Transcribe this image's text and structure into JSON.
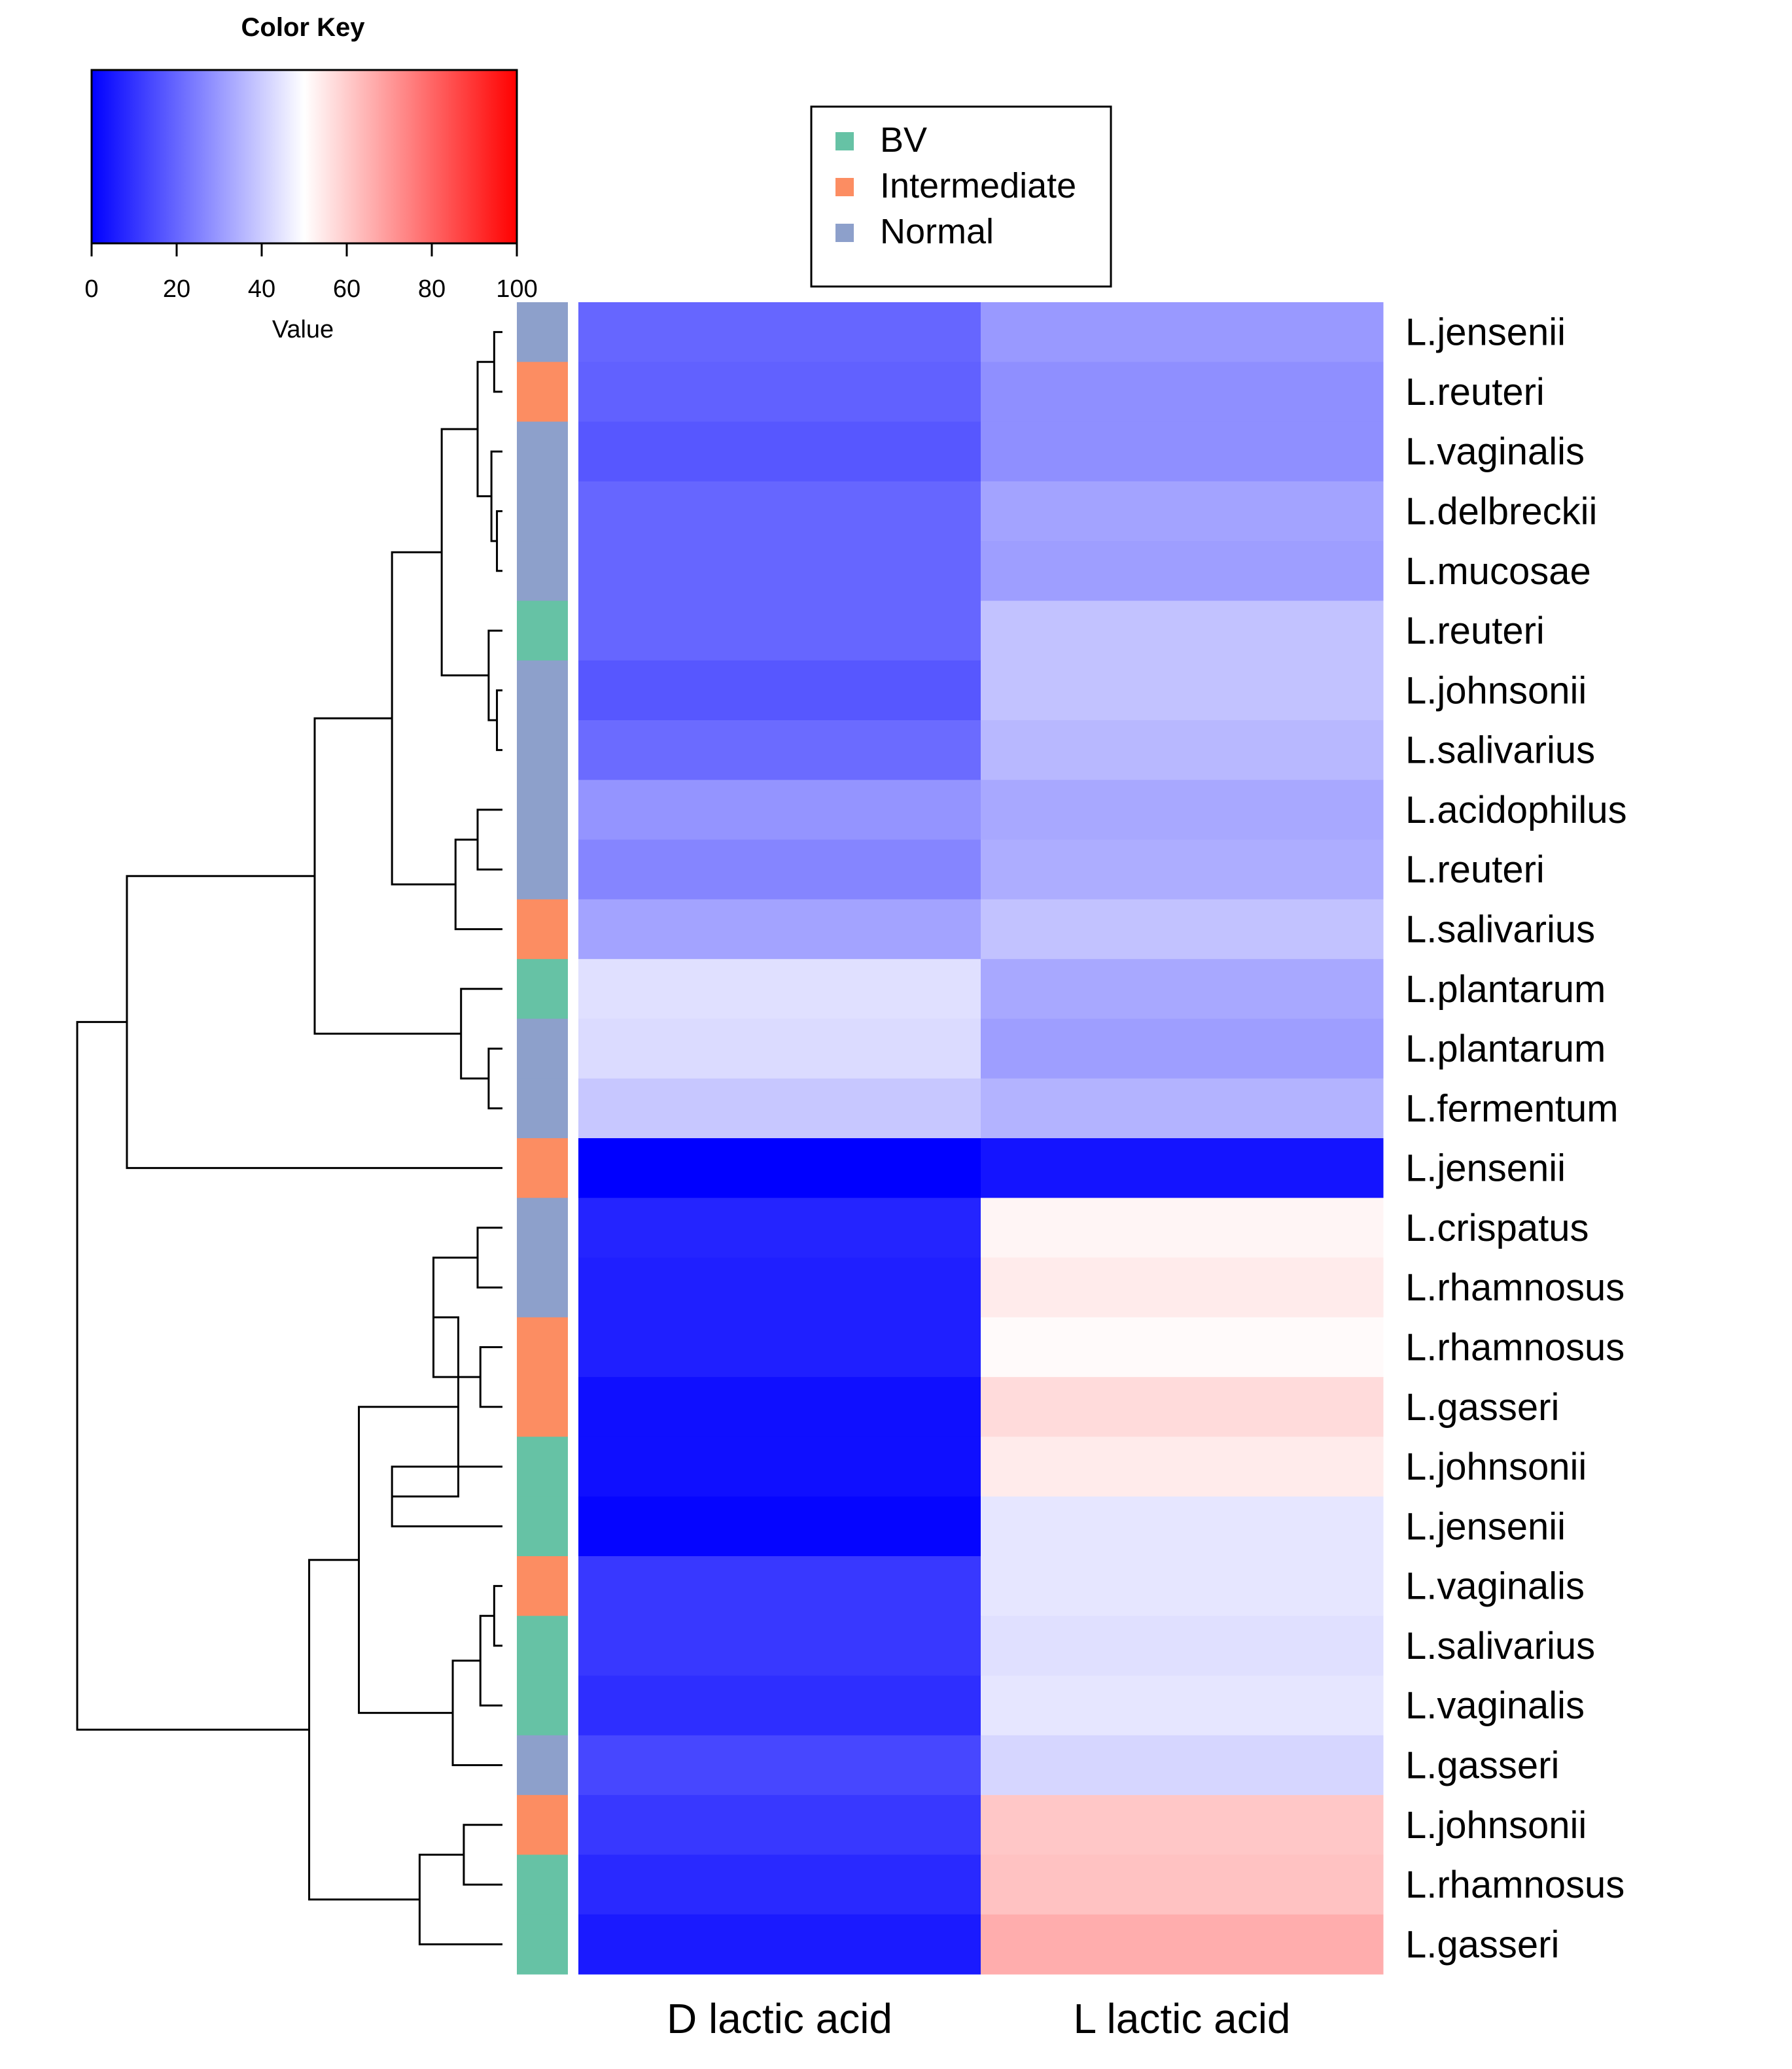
{
  "colors": {
    "BV": "#66c2a5",
    "Intermediate": "#fc8d62",
    "Normal": "#8da0cb",
    "scale_low": "#0000ff",
    "scale_mid": "#ffffff",
    "scale_high": "#ff0000"
  },
  "chart_data": {
    "type": "heatmap",
    "columns": [
      "D lactic acid",
      "L lactic acid"
    ],
    "rows": [
      {
        "label": "L.jensenii",
        "group": "Normal",
        "values": [
          20,
          30
        ]
      },
      {
        "label": "L.reuteri",
        "group": "Intermediate",
        "values": [
          19,
          28
        ]
      },
      {
        "label": "L.vaginalis",
        "group": "Normal",
        "values": [
          17,
          28
        ]
      },
      {
        "label": "L.delbreckii",
        "group": "Normal",
        "values": [
          20,
          32
        ]
      },
      {
        "label": "L.mucosae",
        "group": "Normal",
        "values": [
          20,
          31
        ]
      },
      {
        "label": "L.reuteri",
        "group": "BV",
        "values": [
          20,
          38
        ]
      },
      {
        "label": "L.johnsonii",
        "group": "Normal",
        "values": [
          17,
          38
        ]
      },
      {
        "label": "L.salivarius",
        "group": "Normal",
        "values": [
          21,
          36
        ]
      },
      {
        "label": "L.acidophilus",
        "group": "Normal",
        "values": [
          29,
          33
        ]
      },
      {
        "label": "L.reuteri",
        "group": "Normal",
        "values": [
          26,
          34
        ]
      },
      {
        "label": "L.salivarius",
        "group": "Intermediate",
        "values": [
          32,
          38
        ]
      },
      {
        "label": "L.plantarum",
        "group": "BV",
        "values": [
          44,
          33
        ]
      },
      {
        "label": "L.plantarum",
        "group": "Normal",
        "values": [
          43,
          31
        ]
      },
      {
        "label": "L.fermentum",
        "group": "Normal",
        "values": [
          39,
          35
        ]
      },
      {
        "label": "L.jensenii",
        "group": "Intermediate",
        "values": [
          0,
          4
        ]
      },
      {
        "label": "L.crispatus",
        "group": "Normal",
        "values": [
          7,
          52
        ]
      },
      {
        "label": "L.rhamnosus",
        "group": "Normal",
        "values": [
          6,
          54
        ]
      },
      {
        "label": "L.rhamnosus",
        "group": "Intermediate",
        "values": [
          6,
          51
        ]
      },
      {
        "label": "L.gasseri",
        "group": "Intermediate",
        "values": [
          3,
          57
        ]
      },
      {
        "label": "L.johnsonii",
        "group": "BV",
        "values": [
          3,
          54
        ]
      },
      {
        "label": "L.jensenii",
        "group": "BV",
        "values": [
          1,
          45
        ]
      },
      {
        "label": "L.vaginalis",
        "group": "Intermediate",
        "values": [
          11,
          45
        ]
      },
      {
        "label": "L.salivarius",
        "group": "BV",
        "values": [
          11,
          44
        ]
      },
      {
        "label": "L.vaginalis",
        "group": "BV",
        "values": [
          9,
          45
        ]
      },
      {
        "label": "L.gasseri",
        "group": "Normal",
        "values": [
          14,
          42
        ]
      },
      {
        "label": "L.johnsonii",
        "group": "Intermediate",
        "values": [
          11,
          61
        ]
      },
      {
        "label": "L.rhamnosus",
        "group": "BV",
        "values": [
          8,
          62
        ]
      },
      {
        "label": "L.gasseri",
        "group": "BV",
        "values": [
          5,
          66
        ]
      }
    ],
    "color_key": {
      "title": "Color Key",
      "xlabel": "Value",
      "range": [
        0,
        100
      ],
      "ticks": [
        "0",
        "20",
        "40",
        "60",
        "80",
        "100"
      ]
    },
    "legend": {
      "position": "top-center",
      "entries": [
        "BV",
        "Intermediate",
        "Normal"
      ]
    },
    "dendrogram": {
      "leaf_order": [
        0,
        1,
        2,
        3,
        4,
        5,
        6,
        7,
        8,
        9,
        10,
        11,
        12,
        13,
        14,
        15,
        16,
        17,
        18,
        19,
        20,
        21,
        22,
        23,
        24,
        25,
        26,
        27
      ],
      "merges": [
        [
          0,
          1,
          0.015
        ],
        [
          3,
          4,
          0.01
        ],
        [
          2,
          "m1",
          0.02
        ],
        [
          "m0",
          "m2",
          0.045
        ],
        [
          6,
          7,
          0.01
        ],
        [
          5,
          "m4",
          0.025
        ],
        [
          "m3",
          "m5",
          0.11
        ],
        [
          8,
          9,
          0.045
        ],
        [
          10,
          "m7",
          0.085
        ],
        [
          "m6",
          "m8",
          0.2
        ],
        [
          12,
          13,
          0.025
        ],
        [
          11,
          "m10",
          0.075
        ],
        [
          "m9",
          "m11",
          0.34
        ],
        [
          14,
          "m12",
          0.68
        ],
        [
          15,
          16,
          0.045
        ],
        [
          17,
          18,
          0.04
        ],
        [
          "m14",
          "m15",
          0.125
        ],
        [
          19,
          20,
          0.2
        ],
        [
          "m16",
          "m17",
          0.08
        ],
        [
          21,
          22,
          0.015
        ],
        [
          23,
          "m19",
          0.04
        ],
        [
          24,
          "m20",
          0.09
        ],
        [
          "m18",
          "m21",
          0.26
        ],
        [
          25,
          26,
          0.07
        ],
        [
          27,
          "m23",
          0.15
        ],
        [
          "m22",
          "m24",
          0.35
        ],
        [
          "m13",
          "m25",
          0.77
        ]
      ]
    }
  }
}
